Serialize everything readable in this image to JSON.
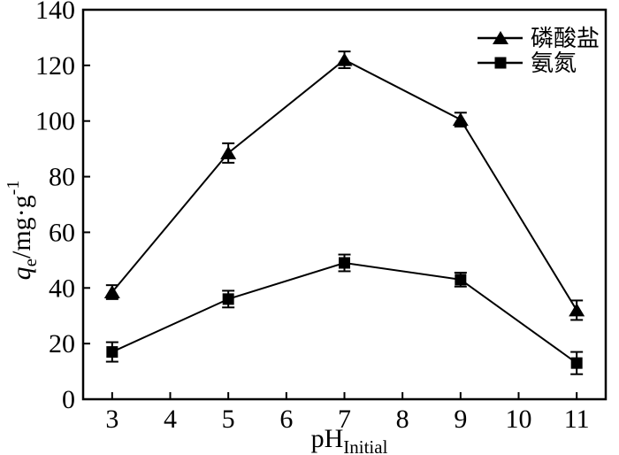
{
  "figure": {
    "background_color": "#ffffff",
    "ink_color": "#000000"
  },
  "chart_data": {
    "type": "line",
    "title": "",
    "xlabel": {
      "base": "pH",
      "subscript": "Initial"
    },
    "ylabel": {
      "quantity": "q",
      "quantity_subscript": "e",
      "unit_text": "/mg·g",
      "unit_superscript": "-1"
    },
    "x": [
      3,
      5,
      7,
      9,
      11
    ],
    "x_ticks": [
      3,
      4,
      5,
      6,
      7,
      8,
      9,
      10,
      11
    ],
    "y_ticks": [
      0,
      20,
      40,
      60,
      80,
      100,
      120,
      140
    ],
    "xlim": [
      2.5,
      11.5
    ],
    "ylim": [
      0,
      140
    ],
    "grid": false,
    "legend_position": "top-right-inside",
    "series": [
      {
        "key": "phosphate",
        "name": "磷酸盐",
        "marker": "triangle",
        "color": "#000000",
        "values": [
          38.5,
          88.5,
          122,
          100.5,
          32
        ],
        "errors": [
          2.5,
          3.5,
          3,
          2.5,
          3.5
        ]
      },
      {
        "key": "ammonia-nitrogen",
        "name": "氨氮",
        "marker": "square",
        "color": "#000000",
        "values": [
          17,
          36,
          49,
          43,
          13
        ],
        "errors": [
          3.5,
          3,
          3,
          2.5,
          4
        ]
      }
    ]
  }
}
